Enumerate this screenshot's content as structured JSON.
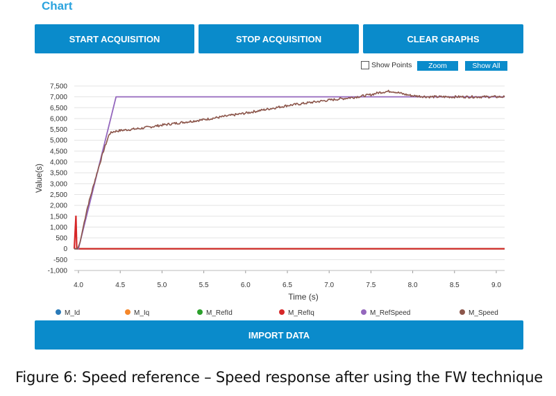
{
  "header": {
    "title": "Chart"
  },
  "toolbar": {
    "start_label": "START ACQUISITION",
    "stop_label": "STOP ACQUISITION",
    "clear_label": "CLEAR GRAPHS"
  },
  "controls": {
    "show_points_label": "Show Points",
    "show_points_checked": false,
    "zoom_label": "Zoom",
    "show_all_label": "Show All"
  },
  "footer": {
    "import_label": "IMPORT DATA"
  },
  "caption": "Figure 6: Speed reference – Speed response after using the FW technique",
  "colors": {
    "accent": "#0a8bcb",
    "title": "#2aa3de",
    "M_Id": "#2a7ab8",
    "M_Iq": "#f5872a",
    "M_RefId": "#2ca02c",
    "M_RefIq": "#d62728",
    "M_RefSpeed": "#9467bd",
    "M_Speed": "#8c564b"
  },
  "chart_data": {
    "type": "line",
    "xlabel": "Time (s)",
    "ylabel": "Value(s)",
    "xlim": [
      3.95,
      9.1
    ],
    "ylim": [
      -1000,
      7500
    ],
    "x_ticks": [
      "4.0",
      "4.5",
      "5.0",
      "5.5",
      "6.0",
      "6.5",
      "7.0",
      "7.5",
      "8.0",
      "8.5",
      "9.0"
    ],
    "y_ticks": [
      "7,500",
      "7,000",
      "6,500",
      "6,000",
      "5,500",
      "5,000",
      "4,500",
      "4,000",
      "3,500",
      "3,000",
      "2,500",
      "2,000",
      "1,500",
      "1,000",
      "500",
      "0",
      "-500",
      "-1,000"
    ],
    "grid": true,
    "legend_position": "bottom",
    "series": [
      {
        "name": "M_Id",
        "x": [
          3.95,
          9.1
        ],
        "y": [
          0,
          0
        ]
      },
      {
        "name": "M_Iq",
        "x": [
          3.95,
          9.1
        ],
        "y": [
          0,
          0
        ]
      },
      {
        "name": "M_RefId",
        "x": [
          3.95,
          9.1
        ],
        "y": [
          0,
          0
        ]
      },
      {
        "name": "M_RefIq",
        "x": [
          3.95,
          3.97,
          3.98,
          3.99,
          4.0,
          9.1
        ],
        "y": [
          0,
          1500,
          0,
          0,
          0,
          0
        ]
      },
      {
        "name": "M_RefSpeed",
        "x": [
          3.95,
          3.97,
          4.0,
          4.45,
          9.1
        ],
        "y": [
          0,
          0,
          0,
          7000,
          7000
        ]
      },
      {
        "name": "M_Speed",
        "x": [
          3.95,
          3.99,
          4.02,
          4.1,
          4.2,
          4.3,
          4.37,
          4.42,
          4.5,
          4.75,
          5.0,
          5.5,
          6.0,
          6.5,
          7.0,
          7.3,
          7.5,
          7.6,
          7.7,
          7.75,
          7.8,
          7.9,
          8.0,
          8.2,
          8.5,
          9.1
        ],
        "y": [
          0,
          0,
          300,
          1800,
          3200,
          4500,
          5300,
          5400,
          5450,
          5550,
          5700,
          5950,
          6250,
          6600,
          6850,
          6980,
          7100,
          7200,
          7250,
          7260,
          7220,
          7120,
          7050,
          7000,
          7000,
          7000
        ]
      }
    ]
  }
}
